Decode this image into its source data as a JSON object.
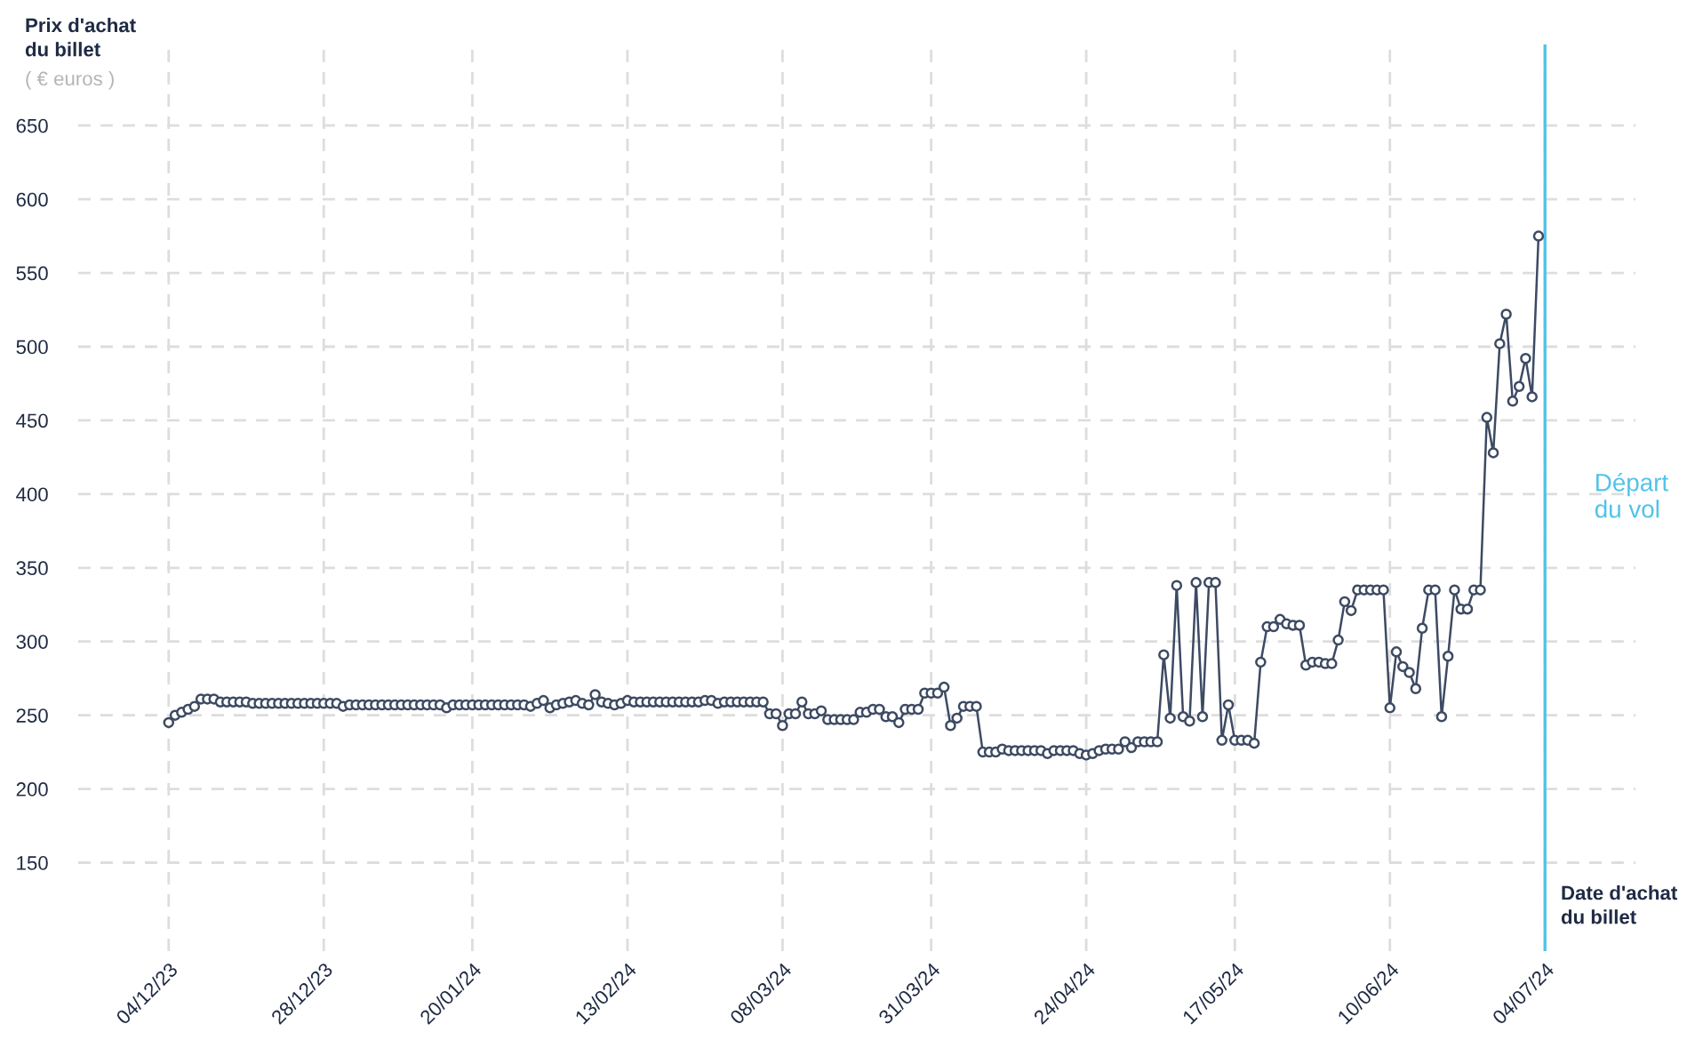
{
  "chart_data": {
    "type": "line",
    "ylabel": "Prix d'achat\ndu billet",
    "xlabel": "Date d'achat\ndu billet",
    "annotations": [
      "( € euros )"
    ],
    "x": [
      "2023-12-04",
      "2023-12-05",
      "2023-12-06",
      "2023-12-07",
      "2023-12-08",
      "2023-12-09",
      "2023-12-10",
      "2023-12-11",
      "2023-12-12",
      "2023-12-13",
      "2023-12-14",
      "2023-12-15",
      "2023-12-16",
      "2023-12-17",
      "2023-12-18",
      "2023-12-19",
      "2023-12-20",
      "2023-12-21",
      "2023-12-22",
      "2023-12-23",
      "2023-12-24",
      "2023-12-25",
      "2023-12-26",
      "2023-12-27",
      "2023-12-28",
      "2023-12-29",
      "2023-12-30",
      "2023-12-31",
      "2024-01-01",
      "2024-01-02",
      "2024-01-03",
      "2024-01-04",
      "2024-01-05",
      "2024-01-06",
      "2024-01-07",
      "2024-01-08",
      "2024-01-09",
      "2024-01-10",
      "2024-01-11",
      "2024-01-12",
      "2024-01-13",
      "2024-01-14",
      "2024-01-15",
      "2024-01-16",
      "2024-01-17",
      "2024-01-18",
      "2024-01-19",
      "2024-01-20",
      "2024-01-21",
      "2024-01-22",
      "2024-01-23",
      "2024-01-24",
      "2024-01-25",
      "2024-01-26",
      "2024-01-27",
      "2024-01-28",
      "2024-01-29",
      "2024-01-30",
      "2024-01-31",
      "2024-02-01",
      "2024-02-02",
      "2024-02-03",
      "2024-02-04",
      "2024-02-05",
      "2024-02-06",
      "2024-02-07",
      "2024-02-08",
      "2024-02-09",
      "2024-02-10",
      "2024-02-11",
      "2024-02-12",
      "2024-02-13",
      "2024-02-14",
      "2024-02-15",
      "2024-02-16",
      "2024-02-17",
      "2024-02-18",
      "2024-02-19",
      "2024-02-20",
      "2024-02-21",
      "2024-02-22",
      "2024-02-23",
      "2024-02-24",
      "2024-02-25",
      "2024-02-26",
      "2024-02-27",
      "2024-02-28",
      "2024-02-29",
      "2024-03-01",
      "2024-03-02",
      "2024-03-03",
      "2024-03-04",
      "2024-03-05",
      "2024-03-06",
      "2024-03-07",
      "2024-03-08",
      "2024-03-09",
      "2024-03-10",
      "2024-03-11",
      "2024-03-12",
      "2024-03-13",
      "2024-03-14",
      "2024-03-15",
      "2024-03-16",
      "2024-03-17",
      "2024-03-18",
      "2024-03-19",
      "2024-03-20",
      "2024-03-21",
      "2024-03-22",
      "2024-03-23",
      "2024-03-24",
      "2024-03-25",
      "2024-03-26",
      "2024-03-27",
      "2024-03-28",
      "2024-03-29",
      "2024-03-30",
      "2024-03-31",
      "2024-04-01",
      "2024-04-02",
      "2024-04-03",
      "2024-04-04",
      "2024-04-05",
      "2024-04-06",
      "2024-04-07",
      "2024-04-08",
      "2024-04-09",
      "2024-04-10",
      "2024-04-11",
      "2024-04-12",
      "2024-04-13",
      "2024-04-14",
      "2024-04-15",
      "2024-04-16",
      "2024-04-17",
      "2024-04-18",
      "2024-04-19",
      "2024-04-20",
      "2024-04-21",
      "2024-04-22",
      "2024-04-23",
      "2024-04-24",
      "2024-04-25",
      "2024-04-26",
      "2024-04-27",
      "2024-04-28",
      "2024-04-29",
      "2024-04-30",
      "2024-05-01",
      "2024-05-02",
      "2024-05-03",
      "2024-05-04",
      "2024-05-05",
      "2024-05-06",
      "2024-05-07",
      "2024-05-08",
      "2024-05-09",
      "2024-05-10",
      "2024-05-11",
      "2024-05-12",
      "2024-05-13",
      "2024-05-14",
      "2024-05-15",
      "2024-05-16",
      "2024-05-17",
      "2024-05-18",
      "2024-05-19",
      "2024-05-20",
      "2024-05-21",
      "2024-05-22",
      "2024-05-23",
      "2024-05-24",
      "2024-05-25",
      "2024-05-26",
      "2024-05-27",
      "2024-05-28",
      "2024-05-29",
      "2024-05-30",
      "2024-05-31",
      "2024-06-01",
      "2024-06-02",
      "2024-06-03",
      "2024-06-04",
      "2024-06-05",
      "2024-06-06",
      "2024-06-07",
      "2024-06-08",
      "2024-06-09",
      "2024-06-10",
      "2024-06-11",
      "2024-06-12",
      "2024-06-13",
      "2024-06-14",
      "2024-06-15",
      "2024-06-16",
      "2024-06-17",
      "2024-06-18",
      "2024-06-19",
      "2024-06-20",
      "2024-06-21",
      "2024-06-22",
      "2024-06-23",
      "2024-06-24",
      "2024-06-25",
      "2024-06-26",
      "2024-06-27",
      "2024-06-28",
      "2024-06-29",
      "2024-06-30",
      "2024-07-01",
      "2024-07-02",
      "2024-07-03"
    ],
    "series": [
      {
        "color": "#3d4a63",
        "values": [
          245,
          250,
          252,
          254,
          256,
          261,
          261,
          261,
          259,
          259,
          259,
          259,
          259,
          258,
          258,
          258,
          258,
          258,
          258,
          258,
          258,
          258,
          258,
          258,
          258,
          258,
          258,
          256,
          257,
          257,
          257,
          257,
          257,
          257,
          257,
          257,
          257,
          257,
          257,
          257,
          257,
          257,
          257,
          255,
          257,
          257,
          257,
          257,
          257,
          257,
          257,
          257,
          257,
          257,
          257,
          257,
          256,
          258,
          260,
          255,
          257,
          258,
          259,
          260,
          258,
          257,
          264,
          259,
          258,
          257,
          258,
          260,
          259,
          259,
          259,
          259,
          259,
          259,
          259,
          259,
          259,
          259,
          259,
          260,
          260,
          258,
          259,
          259,
          259,
          259,
          259,
          259,
          259,
          251,
          251,
          243,
          251,
          251,
          259,
          251,
          251,
          253,
          247,
          247,
          247,
          247,
          247,
          252,
          252,
          254,
          254,
          249,
          249,
          245,
          254,
          254,
          254,
          265,
          265,
          265,
          269,
          243,
          248,
          256,
          256,
          256,
          225,
          225,
          225,
          227,
          226,
          226,
          226,
          226,
          226,
          226,
          224,
          226,
          226,
          226,
          226,
          224,
          223,
          224,
          226,
          227,
          227,
          227,
          232,
          228,
          232,
          232,
          232,
          232,
          291,
          248,
          338,
          249,
          246,
          340,
          249,
          340,
          340,
          233,
          257,
          233,
          233,
          233,
          231,
          286,
          310,
          310,
          315,
          312,
          311,
          311,
          284,
          286,
          286,
          285,
          285,
          301,
          327,
          321,
          335,
          335,
          335,
          335,
          335,
          255,
          293,
          283,
          279,
          268,
          309,
          335,
          335,
          249,
          290,
          335,
          322,
          322,
          335,
          335,
          452,
          428,
          502,
          522,
          463,
          473,
          492,
          466,
          575
        ]
      }
    ],
    "marker": "circle",
    "line_style": "solid",
    "grid": true,
    "xlim": [
      "2023-11-20",
      "2024-07-18"
    ],
    "xticks": [
      {
        "value": "2023-12-04",
        "label": "04/12/23"
      },
      {
        "value": "2023-12-28",
        "label": "28/12/23"
      },
      {
        "value": "2024-01-20",
        "label": "20/01/24"
      },
      {
        "value": "2024-02-13",
        "label": "13/02/24"
      },
      {
        "value": "2024-03-08",
        "label": "08/03/24"
      },
      {
        "value": "2024-03-31",
        "label": "31/03/24"
      },
      {
        "value": "2024-04-24",
        "label": "24/04/24"
      },
      {
        "value": "2024-05-17",
        "label": "17/05/24"
      },
      {
        "value": "2024-06-10",
        "label": "10/06/24"
      },
      {
        "value": "2024-07-04",
        "label": "04/07/24"
      }
    ],
    "ylim": [
      90,
      705
    ],
    "yticks": [
      150,
      200,
      250,
      300,
      350,
      400,
      450,
      500,
      550,
      600,
      650
    ],
    "ref_lines": [
      {
        "axis": "x",
        "value": "2024-07-04",
        "label": "Départ\ndu vol",
        "color": "#4fc3e8"
      }
    ]
  }
}
